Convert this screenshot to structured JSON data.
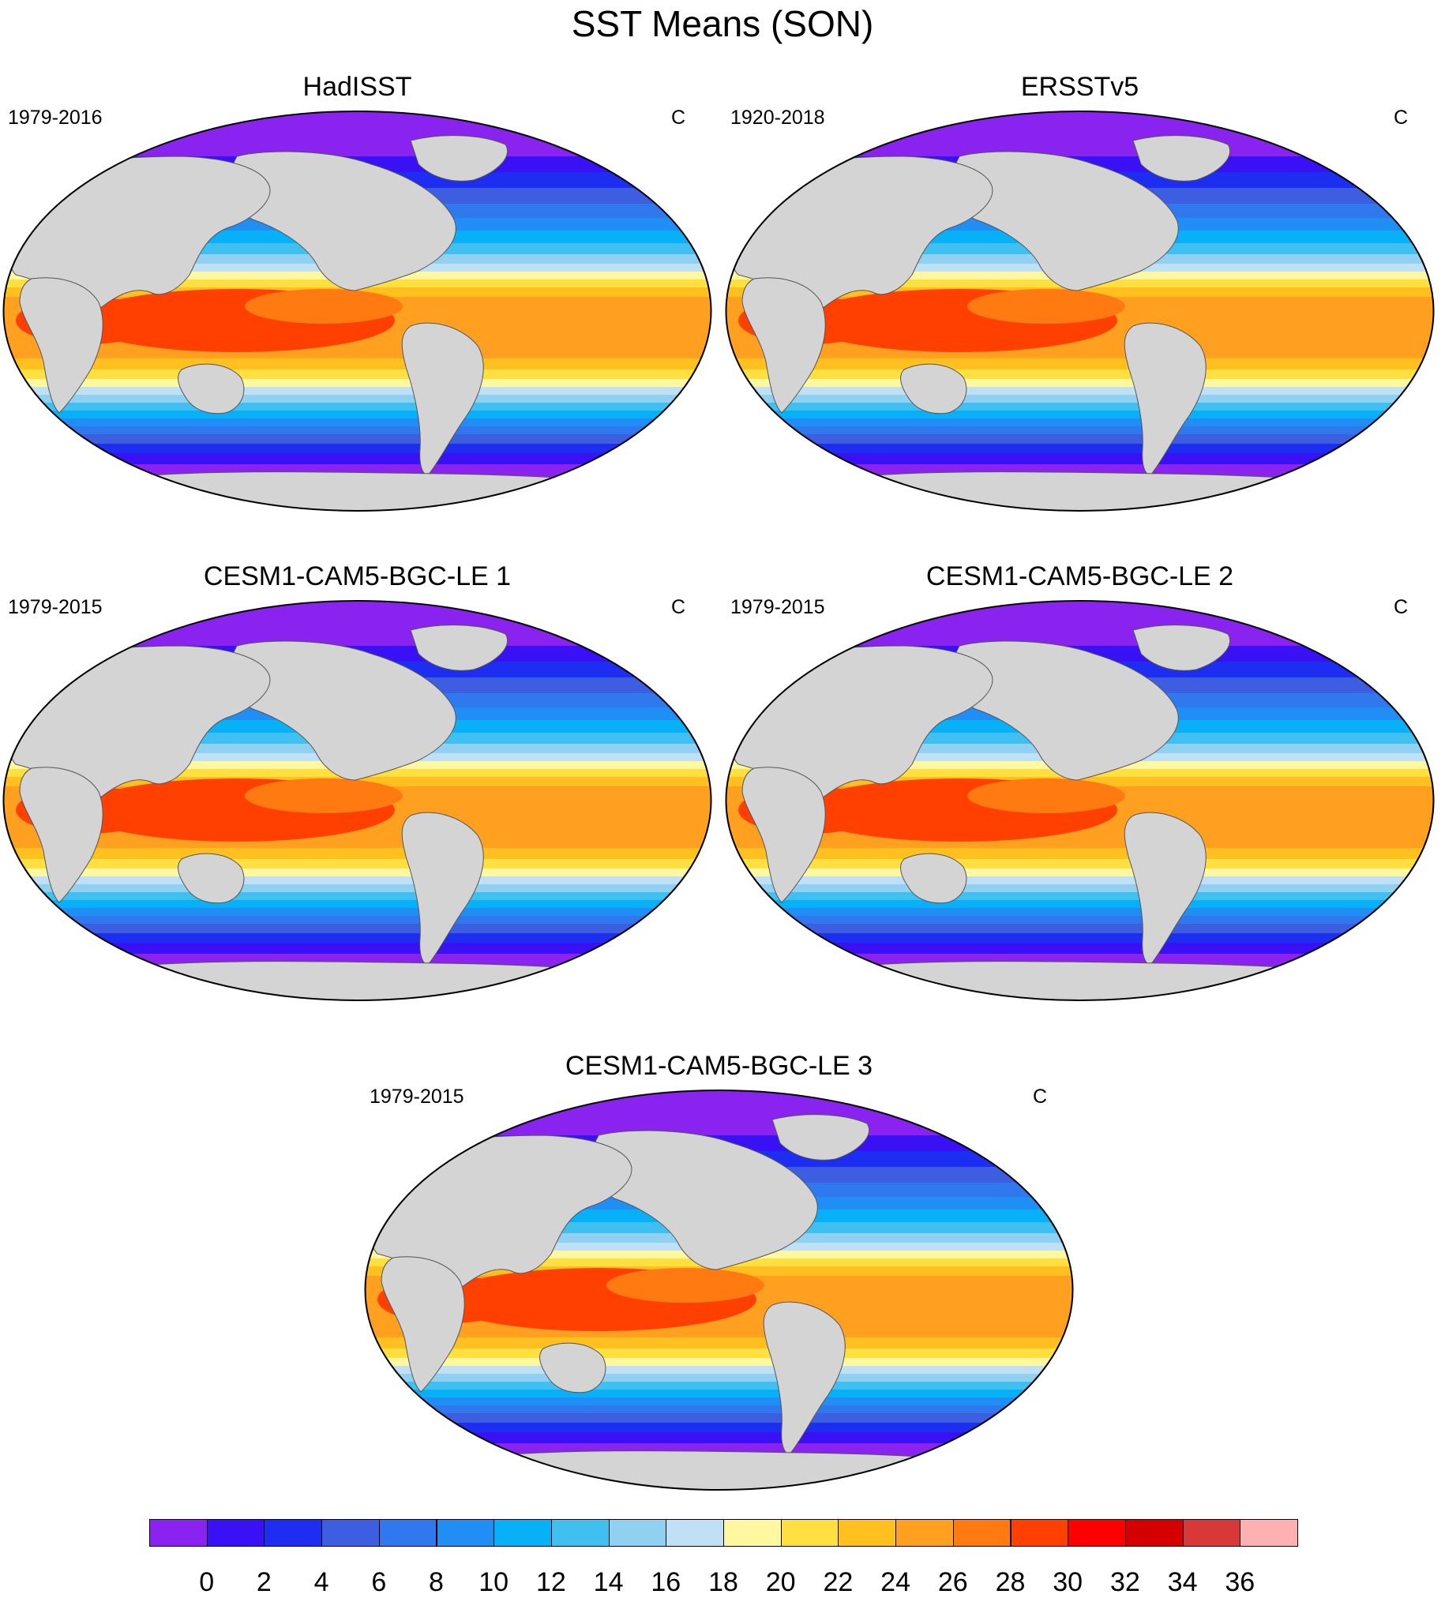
{
  "title": "SST Means (SON)",
  "panels": [
    {
      "name": "HadISST",
      "period": "1979-2016",
      "units": "C"
    },
    {
      "name": "ERSSTv5",
      "period": "1920-2018",
      "units": "C"
    },
    {
      "name": "CESM1-CAM5-BGC-LE 1",
      "period": "1979-2015",
      "units": "C"
    },
    {
      "name": "CESM1-CAM5-BGC-LE 2",
      "period": "1979-2015",
      "units": "C"
    },
    {
      "name": "CESM1-CAM5-BGC-LE 3",
      "period": "1979-2015",
      "units": "C"
    }
  ],
  "colorbar": {
    "labels": [
      "0",
      "2",
      "4",
      "6",
      "8",
      "10",
      "12",
      "14",
      "16",
      "18",
      "20",
      "22",
      "24",
      "26",
      "28",
      "30",
      "32",
      "34",
      "36"
    ],
    "colors": [
      "#8a22f0",
      "#3a10f5",
      "#1e2ef0",
      "#3d5ee0",
      "#2f78ee",
      "#208ef5",
      "#08b0f8",
      "#40c0f0",
      "#90d0f0",
      "#c0e0f5",
      "#fff8a0",
      "#ffe040",
      "#ffc020",
      "#ffa020",
      "#ff7a10",
      "#ff4000",
      "#ff0000",
      "#d40000",
      "#d83838",
      "#ffb0b0"
    ]
  },
  "colors": {
    "land": "#d4d4d4",
    "frame": "#000000"
  }
}
